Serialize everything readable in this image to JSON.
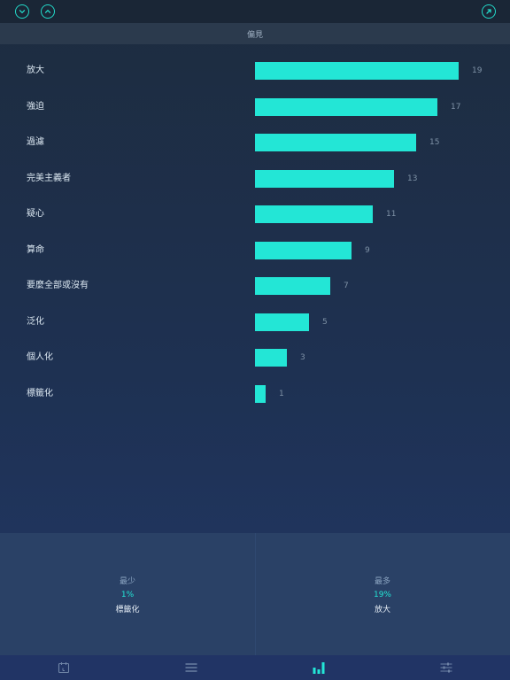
{
  "header": {
    "title": "偏見"
  },
  "chart_data": {
    "type": "bar",
    "orientation": "horizontal",
    "categories": [
      "放大",
      "強迫",
      "過濾",
      "完美主義者",
      "疑心",
      "算命",
      "要麼全部或沒有",
      "泛化",
      "個人化",
      "標籤化"
    ],
    "values": [
      19,
      17,
      15,
      13,
      11,
      9,
      7,
      5,
      3,
      1
    ],
    "xlim": [
      0,
      19
    ],
    "bar_color": "#23e6d6"
  },
  "summary": {
    "least": {
      "title": "最少",
      "percent": "1%",
      "name": "標籤化"
    },
    "most": {
      "title": "最多",
      "percent": "19%",
      "name": "放大"
    }
  },
  "colors": {
    "accent": "#23e6d6",
    "tab_active": "#23e6d6",
    "tab_inactive": "#6f84a6"
  },
  "tabs": [
    {
      "icon": "calendar-icon",
      "active": false
    },
    {
      "icon": "list-icon",
      "active": false
    },
    {
      "icon": "bar-chart-icon",
      "active": true
    },
    {
      "icon": "sliders-icon",
      "active": false
    }
  ]
}
